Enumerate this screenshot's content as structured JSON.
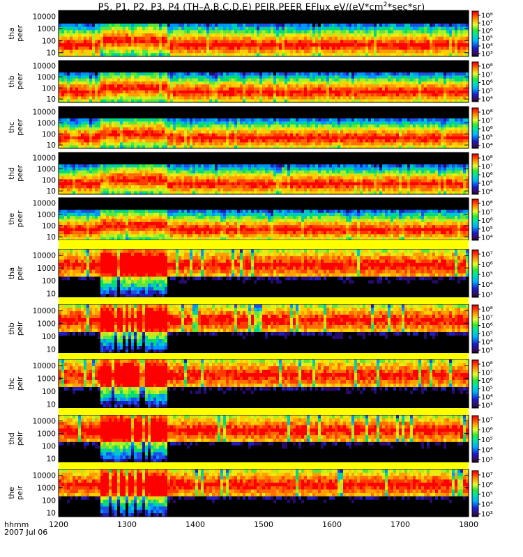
{
  "title": {
    "prefix": "P5, P1, P2, P3, P4 (TH–A,B,C,D,E) PEIR,PEER EFlux eV/(eV*cm",
    "sup": "2",
    "suffix": "*sec*sr)"
  },
  "x_axis": {
    "ticks": [
      "1200",
      "1300",
      "1400",
      "1500",
      "1600",
      "1700",
      "1800"
    ],
    "label": "hhmm",
    "date": "2007 Jul 06"
  },
  "chart_data": [
    {
      "type": "heatmap",
      "probe": "tha",
      "species": "peer",
      "yticks": [
        "10000",
        "1000",
        "100",
        "10"
      ],
      "yrange": [
        5,
        30000
      ],
      "cbar_ticks": [
        "10⁸",
        "10⁷",
        "10⁶",
        "10⁵",
        "10⁴",
        "10³"
      ]
    },
    {
      "type": "heatmap",
      "probe": "thb",
      "species": "peer",
      "yticks": [
        "10000",
        "1000",
        "100",
        "10"
      ],
      "yrange": [
        5,
        30000
      ],
      "cbar_ticks": [
        "10⁸",
        "10⁷",
        "10⁶",
        "10⁵",
        "10⁴"
      ]
    },
    {
      "type": "heatmap",
      "probe": "thc",
      "species": "peer",
      "yticks": [
        "10000",
        "1000",
        "100",
        "10"
      ],
      "yrange": [
        5,
        30000
      ],
      "cbar_ticks": [
        "10⁸",
        "10⁷",
        "10⁶",
        "10⁵",
        "10⁴"
      ]
    },
    {
      "type": "heatmap",
      "probe": "thd",
      "species": "peer",
      "yticks": [
        "10000",
        "1000",
        "100",
        "10"
      ],
      "yrange": [
        5,
        30000
      ],
      "cbar_ticks": [
        "10⁸",
        "10⁷",
        "10⁶",
        "10⁵",
        "10⁴"
      ]
    },
    {
      "type": "heatmap",
      "probe": "the",
      "species": "peer",
      "yticks": [
        "10000",
        "1000",
        "100",
        "10"
      ],
      "yrange": [
        5,
        30000
      ],
      "cbar_ticks": [
        "10⁸",
        "10⁷",
        "10⁶",
        "10⁵",
        "10⁴"
      ]
    },
    {
      "type": "heatmap",
      "probe": "tha",
      "species": "peir",
      "yticks": [
        "10000",
        "1000",
        "100",
        "10"
      ],
      "yrange": [
        5,
        30000
      ],
      "cbar_ticks": [
        "10⁷",
        "10⁶",
        "10⁵",
        "10⁴",
        "10³"
      ]
    },
    {
      "type": "heatmap",
      "probe": "thb",
      "species": "peir",
      "yticks": [
        "10000",
        "1000",
        "100",
        "10"
      ],
      "yrange": [
        5,
        30000
      ],
      "cbar_ticks": [
        "10⁸",
        "10⁷",
        "10⁶",
        "10⁵",
        "10⁴",
        "10³"
      ]
    },
    {
      "type": "heatmap",
      "probe": "thc",
      "species": "peir",
      "yticks": [
        "10000",
        "1000",
        "100",
        "10"
      ],
      "yrange": [
        5,
        30000
      ],
      "cbar_ticks": [
        "10⁸",
        "10⁷",
        "10⁶",
        "10⁵",
        "10⁴",
        "10³"
      ]
    },
    {
      "type": "heatmap",
      "probe": "thd",
      "species": "peir",
      "yticks": [
        "10000",
        "1000",
        "100",
        "10"
      ],
      "yrange": [
        5,
        30000
      ],
      "cbar_ticks": [
        "10⁷",
        "10⁶",
        "10⁵",
        "10⁴",
        "10³"
      ]
    },
    {
      "type": "heatmap",
      "probe": "the",
      "species": "peir",
      "yticks": [
        "10000",
        "1000",
        "100",
        "10"
      ],
      "yrange": [
        5,
        30000
      ],
      "cbar_ticks": [
        "10⁷",
        "10⁶",
        "10⁵",
        "10⁴",
        "10³"
      ]
    }
  ]
}
